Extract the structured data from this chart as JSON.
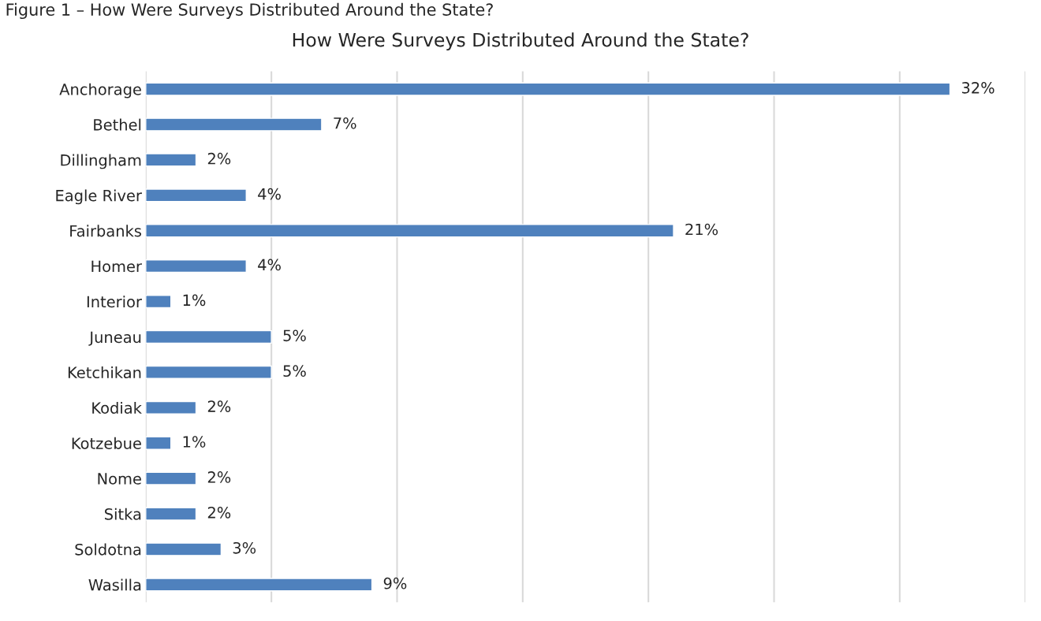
{
  "chart_data": {
    "type": "bar",
    "orientation": "horizontal",
    "title": "How Were Surveys Distributed Around the State?",
    "annotations": [
      "Figure 1 – How Were Surveys Distributed Around the State?"
    ],
    "categories": [
      "Anchorage",
      "Bethel",
      "Dillingham",
      "Eagle River",
      "Fairbanks",
      "Homer",
      "Interior",
      "Juneau",
      "Ketchikan",
      "Kodiak",
      "Kotzebue",
      "Nome",
      "Sitka",
      "Soldotna",
      "Wasilla"
    ],
    "values": [
      32,
      7,
      2,
      4,
      21,
      4,
      1,
      5,
      5,
      2,
      1,
      2,
      2,
      3,
      9
    ],
    "value_labels": [
      "32%",
      "7%",
      "2%",
      "4%",
      "21%",
      "4%",
      "1%",
      "5%",
      "5%",
      "2%",
      "1%",
      "2%",
      "2%",
      "3%",
      "9%"
    ],
    "color": "#4f81bd",
    "xlim": [
      0,
      35
    ],
    "xticks": [
      {
        "value": 0,
        "label": null
      },
      {
        "value": 5,
        "label": null
      },
      {
        "value": 10,
        "label": null
      },
      {
        "value": 15,
        "label": null
      },
      {
        "value": 20,
        "label": null
      },
      {
        "value": 25,
        "label": null
      },
      {
        "value": 30,
        "label": null
      },
      {
        "value": 35,
        "label": null
      }
    ],
    "tick_labels": "y",
    "grid": "x",
    "legend": false
  }
}
